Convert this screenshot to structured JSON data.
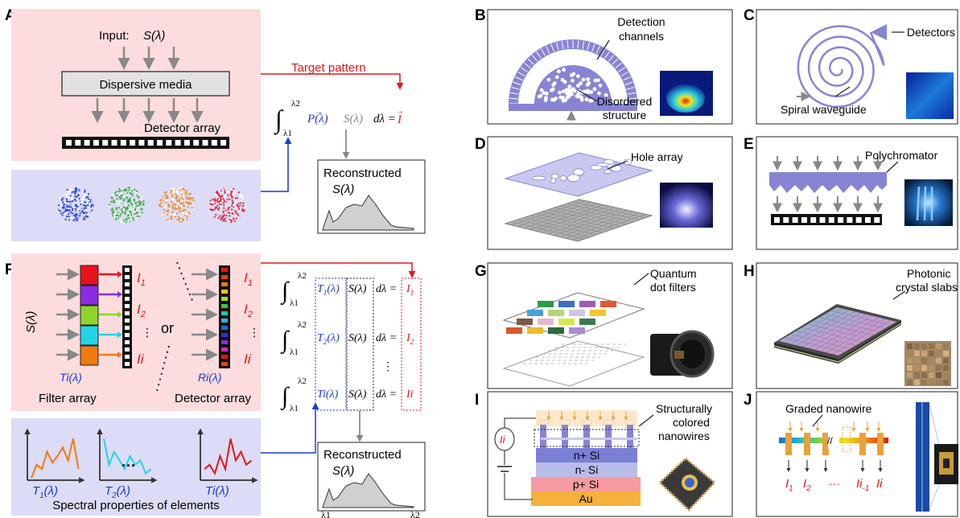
{
  "panel_letters": [
    "A",
    "B",
    "C",
    "D",
    "E",
    "F",
    "G",
    "H",
    "I",
    "J"
  ],
  "panel_a": {
    "input_label": "Input:",
    "input_symbol": "S(λ)",
    "dispersive_label": "Dispersive media",
    "detector_label": "Detector array",
    "target_label": "Target pattern",
    "eq_upper": "λ2",
    "eq_lower": "λ1",
    "eq_P": "P(λ)",
    "eq_S": "S(λ)",
    "eq_tail": "dλ =",
    "eq_I": "I",
    "recon_title": "Reconstructed",
    "recon_symbol": "S(λ)",
    "blob_colors": [
      "#1f3fd6",
      "#2ba52f",
      "#ef8a2a",
      "#d8283c"
    ]
  },
  "panel_b": {
    "channels_label": "Detection channels",
    "disorder_label": "Disordered structure"
  },
  "panel_c": {
    "detectors_label": "Detectors",
    "spiral_label": "Spiral waveguide"
  },
  "panel_d": {
    "hole_label": "Hole array"
  },
  "panel_e": {
    "poly_label": "Polychromator"
  },
  "panel_f": {
    "s_label": "S(λ)",
    "or_label": "or",
    "i_labels": [
      "I1",
      "I2",
      "⋮",
      "Ii"
    ],
    "t_label": "Ti(λ)",
    "r_label": "Ri(λ)",
    "filter_label": "Filter array",
    "detector_label": "Detector array",
    "eq_rows": [
      {
        "t": "T1(λ)",
        "s": "S(λ)",
        "d": "dλ =",
        "i": "I1"
      },
      {
        "t": "T2(λ)",
        "s": "S(λ)",
        "d": "dλ =",
        "i": "I2"
      },
      {
        "t": "Ti(λ)",
        "s": "S(λ)",
        "d": "dλ =",
        "i": "Ii"
      }
    ],
    "eq_upper": "λ2",
    "eq_lower": "λ1",
    "recon_title": "Reconstructed",
    "recon_symbol": "S(λ)",
    "lam1": "λ1",
    "lam2": "λ2",
    "spec_labels": [
      "T1(λ)",
      "T2(λ)",
      "Ti(λ)"
    ],
    "spec_dots": "···",
    "spectral_label": "Spectral properties of elements",
    "filter_colors": [
      "#e8121c",
      "#8b2be2",
      "#8fd42a",
      "#22d3e8",
      "#f07a12"
    ]
  },
  "panel_g": {
    "qd_label_1": "Quantum",
    "qd_label_2": "dot filters",
    "qd_colors": [
      "#2f9a4a",
      "#3b6fc4",
      "#9a5fb8",
      "#e05a33",
      "#4aa0d8",
      "#b6d67a",
      "#cfc5e6",
      "#f5c430",
      "#7a5a4a",
      "#e6b7d2",
      "#d8e84c",
      "#3c7a56",
      "#d85a2a",
      "#f0b830",
      "#2a6a3a",
      "#a88ad0"
    ]
  },
  "panel_h": {
    "phc_label_1": "Photonic",
    "phc_label_2": "crystal slabs"
  },
  "panel_i": {
    "sc_label_1": "Structurally",
    "sc_label_2": "colored",
    "sc_label_3": "nanowires",
    "current": "Ii",
    "layers": [
      "n+ Si",
      "n- Si",
      "p+ Si",
      "Au"
    ],
    "layer_colors": [
      "#7b7fd6",
      "#b9bbe8",
      "#f59aa0",
      "#f6b13a"
    ]
  },
  "panel_j": {
    "graded_label": "Graded nanowire",
    "i_labels": [
      "I1",
      "I2",
      "···",
      "Ii-1",
      "Ii"
    ]
  }
}
